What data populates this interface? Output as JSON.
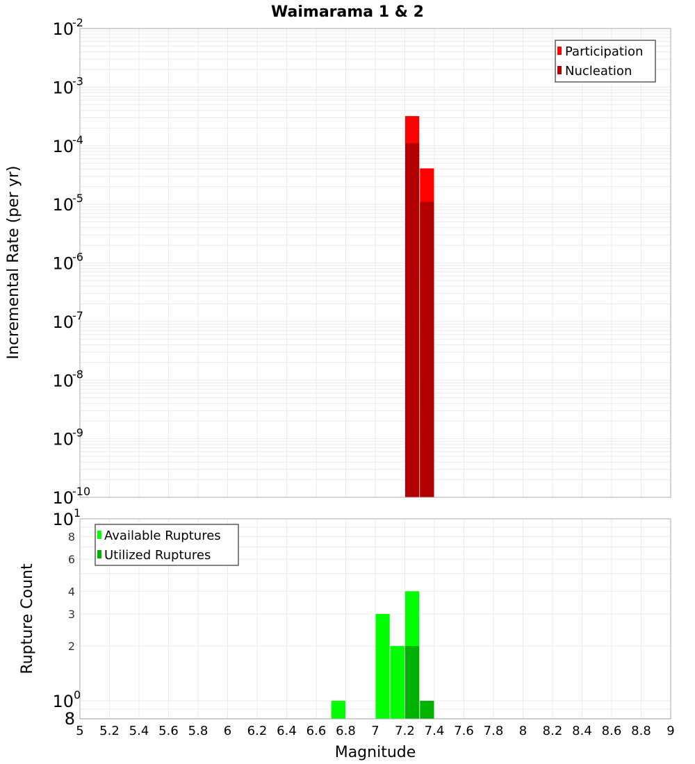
{
  "chart_data": [
    {
      "type": "bar",
      "title": "Waimarama 1 & 2",
      "xlabel": "Magnitude",
      "ylabel": "Incremental Rate (per yr)",
      "yscale": "log",
      "ylim": [
        1e-10,
        0.01
      ],
      "xlim": [
        5,
        9
      ],
      "grid": true,
      "legend_position": "top-right",
      "bin_width": 0.1,
      "y_tick_exponents": [
        -2,
        -3,
        -4,
        -5,
        -6,
        -7,
        -8,
        -9,
        -10
      ],
      "series": [
        {
          "name": "Participation",
          "color": "#ff0000",
          "bins": [
            {
              "x0": 7.2,
              "x1": 7.3,
              "value": 0.00032
            },
            {
              "x0": 7.3,
              "x1": 7.4,
              "value": 4.1e-05
            }
          ]
        },
        {
          "name": "Nucleation",
          "color": "#b20000",
          "bins": [
            {
              "x0": 7.2,
              "x1": 7.3,
              "value": 0.00011
            },
            {
              "x0": 7.3,
              "x1": 7.4,
              "value": 1.1e-05
            }
          ]
        }
      ]
    },
    {
      "type": "bar",
      "title": "",
      "xlabel": "Magnitude",
      "ylabel": "Rupture Count",
      "yscale": "log",
      "ylim": [
        0.8,
        10
      ],
      "xlim": [
        5,
        9
      ],
      "grid": true,
      "legend_position": "top-left",
      "bin_width": 0.1,
      "y_major_ticks": [
        {
          "value": 10,
          "base": "10",
          "exp": "1"
        },
        {
          "value": 1,
          "base": "10",
          "exp": "0"
        }
      ],
      "y_minor_ticks": [
        {
          "value": 8,
          "label": "8"
        },
        {
          "value": 6,
          "label": "6"
        },
        {
          "value": 4,
          "label": "4"
        },
        {
          "value": 3,
          "label": "3"
        },
        {
          "value": 2,
          "label": "2"
        }
      ],
      "y_bottom_label": "8",
      "series": [
        {
          "name": "Available Ruptures",
          "color": "#00ff00",
          "bins": [
            {
              "x0": 6.7,
              "x1": 6.8,
              "value": 1
            },
            {
              "x0": 7.0,
              "x1": 7.1,
              "value": 3
            },
            {
              "x0": 7.1,
              "x1": 7.2,
              "value": 2
            },
            {
              "x0": 7.2,
              "x1": 7.3,
              "value": 4
            }
          ]
        },
        {
          "name": "Utilized Ruptures",
          "color": "#00b200",
          "bins": [
            {
              "x0": 7.2,
              "x1": 7.3,
              "value": 2
            },
            {
              "x0": 7.3,
              "x1": 7.4,
              "value": 1
            }
          ]
        }
      ]
    }
  ],
  "x_ticks": [
    "5",
    "5.2",
    "5.4",
    "5.6",
    "5.8",
    "6",
    "6.2",
    "6.4",
    "6.6",
    "6.8",
    "7",
    "7.2",
    "7.4",
    "7.6",
    "7.8",
    "8",
    "8.2",
    "8.4",
    "8.6",
    "8.8",
    "9"
  ],
  "labels": {
    "title": "Waimarama 1 & 2",
    "xlabel": "Magnitude",
    "top_ylabel": "Incremental Rate (per yr)",
    "bottom_ylabel": "Rupture Count",
    "legend_top": [
      "Participation",
      "Nucleation"
    ],
    "legend_bottom": [
      "Available Ruptures",
      "Utilized Ruptures"
    ]
  },
  "colors": {
    "grid": "#ebebeb",
    "frame": "#a8a8a8",
    "legend_border": "#333333"
  }
}
